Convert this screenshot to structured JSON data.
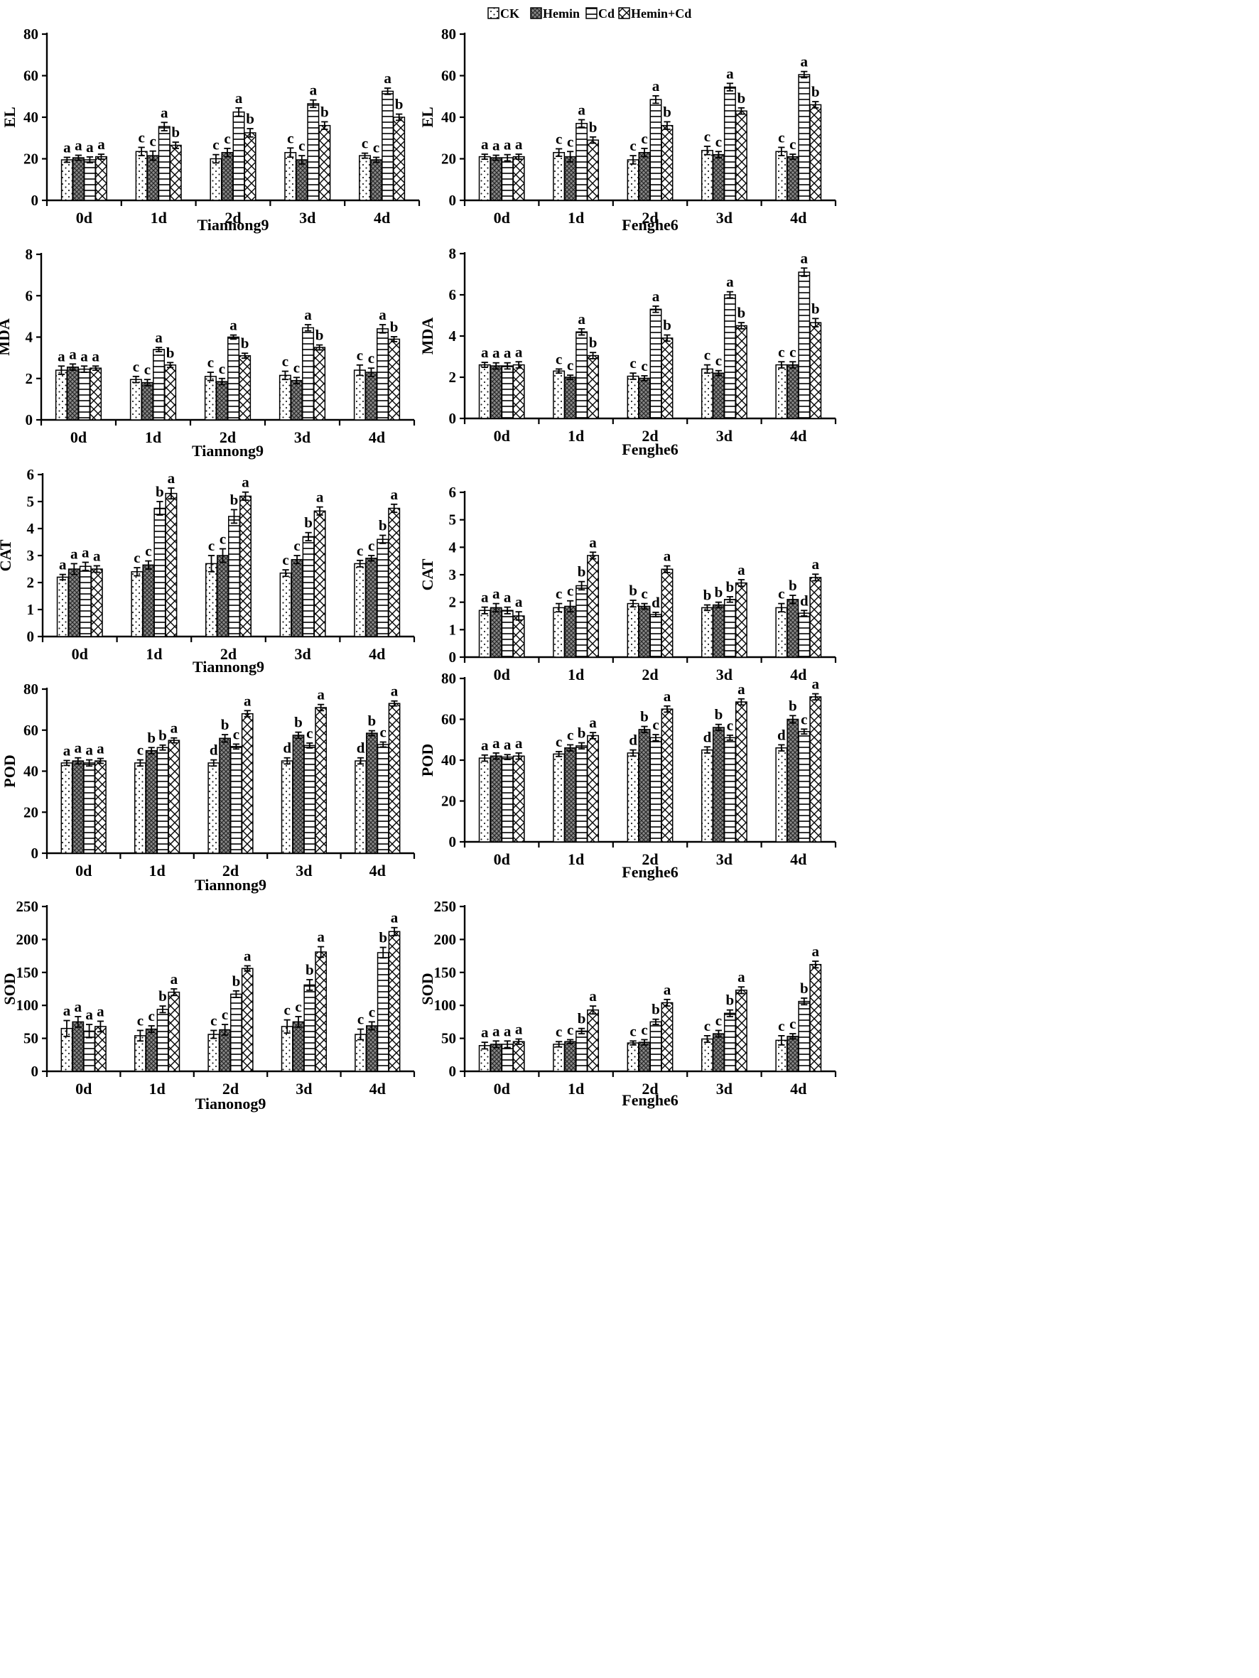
{
  "legend": [
    "CK",
    "Hemin",
    "Cd",
    "Hemin+Cd"
  ],
  "chart_data": [
    {
      "id": "el-tiannong9",
      "type": "bar",
      "ylabel": "EL",
      "xlabel": "Tiannong9",
      "categories": [
        "0d",
        "1d",
        "2d",
        "3d",
        "4d"
      ],
      "ylim": [
        0,
        80
      ],
      "yticks": [
        0,
        20,
        40,
        60,
        80
      ],
      "series": [
        {
          "name": "CK",
          "values": [
            19.5,
            23.5,
            20,
            23,
            21.5
          ],
          "errors": [
            1.2,
            2,
            2,
            2.2,
            1.2
          ],
          "letters": [
            "a",
            "c",
            "c",
            "c",
            "c"
          ]
        },
        {
          "name": "Hemin",
          "values": [
            20.5,
            21.5,
            23,
            19.5,
            19.5
          ],
          "errors": [
            1.2,
            2.2,
            2,
            2,
            1.2
          ],
          "letters": [
            "a",
            "c",
            "c",
            "c",
            "c"
          ]
        },
        {
          "name": "Cd",
          "values": [
            19.5,
            35.5,
            42.5,
            46.5,
            52.5
          ],
          "errors": [
            1.4,
            2,
            2,
            1.8,
            1.5
          ],
          "letters": [
            "a",
            "a",
            "a",
            "a",
            "a"
          ]
        },
        {
          "name": "Hemin+Cd",
          "values": [
            21,
            26.5,
            32.5,
            36,
            40
          ],
          "errors": [
            1.2,
            1.5,
            2,
            1.8,
            1.5
          ],
          "letters": [
            "a",
            "b",
            "b",
            "b",
            "b"
          ]
        }
      ]
    },
    {
      "id": "el-fenghe6",
      "type": "bar",
      "ylabel": "EL",
      "xlabel": "Fenghe6",
      "categories": [
        "0d",
        "1d",
        "2d",
        "3d",
        "4d"
      ],
      "ylim": [
        0,
        80
      ],
      "yticks": [
        0,
        20,
        40,
        60,
        80
      ],
      "series": [
        {
          "name": "CK",
          "values": [
            21,
            23,
            19.5,
            24,
            23.5
          ],
          "errors": [
            1.2,
            1.8,
            2,
            2,
            2
          ],
          "letters": [
            "a",
            "c",
            "c",
            "c",
            "c"
          ]
        },
        {
          "name": "Hemin",
          "values": [
            20.5,
            21,
            23,
            22,
            21
          ],
          "errors": [
            1.2,
            2.5,
            2,
            1.5,
            1.2
          ],
          "letters": [
            "a",
            "c",
            "c",
            "c",
            "c"
          ]
        },
        {
          "name": "Cd",
          "values": [
            20.5,
            37,
            48.5,
            54.5,
            60.5
          ],
          "errors": [
            1.5,
            1.8,
            1.8,
            1.8,
            1.5
          ],
          "letters": [
            "a",
            "a",
            "a",
            "a",
            "a"
          ]
        },
        {
          "name": "Hemin+Cd",
          "values": [
            21,
            29,
            36,
            43,
            46
          ],
          "errors": [
            1.2,
            1.5,
            1.8,
            1.5,
            1.5
          ],
          "letters": [
            "a",
            "b",
            "b",
            "b",
            "b"
          ]
        }
      ]
    },
    {
      "id": "mda-tiannong9",
      "type": "bar",
      "ylabel": "MDA",
      "xlabel": "Tiannong9",
      "categories": [
        "0d",
        "1d",
        "2d",
        "3d",
        "4d"
      ],
      "ylim": [
        0,
        8
      ],
      "yticks": [
        0,
        2,
        4,
        6,
        8
      ],
      "series": [
        {
          "name": "CK",
          "values": [
            2.4,
            1.95,
            2.1,
            2.15,
            2.4
          ],
          "errors": [
            0.2,
            0.15,
            0.2,
            0.2,
            0.25
          ],
          "letters": [
            "a",
            "c",
            "c",
            "c",
            "c"
          ]
        },
        {
          "name": "Hemin",
          "values": [
            2.55,
            1.8,
            1.85,
            1.9,
            2.3
          ],
          "errors": [
            0.15,
            0.15,
            0.15,
            0.15,
            0.2
          ],
          "letters": [
            "a",
            "c",
            "c",
            "c",
            "c"
          ]
        },
        {
          "name": "Cd",
          "values": [
            2.45,
            3.4,
            4.0,
            4.45,
            4.4
          ],
          "errors": [
            0.15,
            0.1,
            0.1,
            0.15,
            0.2
          ],
          "letters": [
            "a",
            "a",
            "a",
            "a",
            "a"
          ]
        },
        {
          "name": "Hemin+Cd",
          "values": [
            2.5,
            2.65,
            3.1,
            3.5,
            3.9
          ],
          "errors": [
            0.1,
            0.12,
            0.12,
            0.12,
            0.12
          ],
          "letters": [
            "a",
            "b",
            "b",
            "b",
            "b"
          ]
        }
      ]
    },
    {
      "id": "mda-fenghe6",
      "type": "bar",
      "ylabel": "MDA",
      "xlabel": "Fenghe6",
      "categories": [
        "0d",
        "1d",
        "2d",
        "3d",
        "4d"
      ],
      "ylim": [
        0,
        8
      ],
      "yticks": [
        0,
        2,
        4,
        6,
        8
      ],
      "series": [
        {
          "name": "CK",
          "values": [
            2.6,
            2.3,
            2.05,
            2.4,
            2.6
          ],
          "errors": [
            0.12,
            0.1,
            0.15,
            0.2,
            0.15
          ],
          "letters": [
            "a",
            "c",
            "c",
            "c",
            "c"
          ]
        },
        {
          "name": "Hemin",
          "values": [
            2.55,
            2.0,
            1.95,
            2.2,
            2.6
          ],
          "errors": [
            0.15,
            0.1,
            0.12,
            0.12,
            0.15
          ],
          "letters": [
            "a",
            "c",
            "c",
            "c",
            "c"
          ]
        },
        {
          "name": "Cd",
          "values": [
            2.55,
            4.2,
            5.3,
            6.0,
            7.1
          ],
          "errors": [
            0.15,
            0.15,
            0.15,
            0.15,
            0.2
          ],
          "letters": [
            "a",
            "a",
            "a",
            "a",
            "a"
          ]
        },
        {
          "name": "Hemin+Cd",
          "values": [
            2.6,
            3.05,
            3.9,
            4.5,
            4.65
          ],
          "errors": [
            0.15,
            0.15,
            0.15,
            0.15,
            0.2
          ],
          "letters": [
            "a",
            "b",
            "b",
            "b",
            "b"
          ]
        }
      ]
    },
    {
      "id": "cat-tiannong9",
      "type": "bar",
      "ylabel": "CAT",
      "xlabel": "Tiannong9",
      "categories": [
        "0d",
        "1d",
        "2d",
        "3d",
        "4d"
      ],
      "ylim": [
        0,
        6
      ],
      "yticks": [
        0,
        1,
        2,
        3,
        4,
        5,
        6
      ],
      "series": [
        {
          "name": "CK",
          "values": [
            2.2,
            2.4,
            2.7,
            2.35,
            2.7
          ],
          "errors": [
            0.1,
            0.15,
            0.3,
            0.12,
            0.12
          ],
          "letters": [
            "a",
            "c",
            "c",
            "c",
            "c"
          ]
        },
        {
          "name": "Hemin",
          "values": [
            2.5,
            2.65,
            3.0,
            2.85,
            2.9
          ],
          "errors": [
            0.2,
            0.15,
            0.25,
            0.15,
            0.1
          ],
          "letters": [
            "a",
            "c",
            "c",
            "c",
            "c"
          ]
        },
        {
          "name": "Cd",
          "values": [
            2.6,
            4.75,
            4.45,
            3.7,
            3.6
          ],
          "errors": [
            0.15,
            0.25,
            0.25,
            0.15,
            0.15
          ],
          "letters": [
            "a",
            "b",
            "b",
            "b",
            "b"
          ]
        },
        {
          "name": "Hemin+Cd",
          "values": [
            2.5,
            5.3,
            5.2,
            4.65,
            4.75
          ],
          "errors": [
            0.12,
            0.2,
            0.15,
            0.15,
            0.15
          ],
          "letters": [
            "a",
            "a",
            "a",
            "a",
            "a"
          ]
        }
      ]
    },
    {
      "id": "cat-fenghe6",
      "type": "bar",
      "ylabel": "CAT",
      "xlabel": "",
      "categories": [
        "0d",
        "1d",
        "2d",
        "3d",
        "4d"
      ],
      "ylim": [
        0,
        6
      ],
      "yticks": [
        0,
        1,
        2,
        3,
        4,
        5,
        6
      ],
      "series": [
        {
          "name": "CK",
          "values": [
            1.7,
            1.8,
            1.95,
            1.8,
            1.8
          ],
          "errors": [
            0.12,
            0.15,
            0.12,
            0.1,
            0.15
          ],
          "letters": [
            "a",
            "c",
            "b",
            "b",
            "c"
          ]
        },
        {
          "name": "Hemin",
          "values": [
            1.8,
            1.85,
            1.85,
            1.9,
            2.1
          ],
          "errors": [
            0.15,
            0.2,
            0.1,
            0.1,
            0.15
          ],
          "letters": [
            "a",
            "c",
            "c",
            "b",
            "b"
          ]
        },
        {
          "name": "Cd",
          "values": [
            1.7,
            2.6,
            1.55,
            2.1,
            1.6
          ],
          "errors": [
            0.12,
            0.15,
            0.08,
            0.1,
            0.1
          ],
          "letters": [
            "a",
            "b",
            "d",
            "b",
            "d"
          ]
        },
        {
          "name": "Hemin+Cd",
          "values": [
            1.5,
            3.7,
            3.2,
            2.7,
            2.9
          ],
          "errors": [
            0.15,
            0.12,
            0.12,
            0.12,
            0.12
          ],
          "letters": [
            "a",
            "a",
            "a",
            "a",
            "a"
          ]
        }
      ]
    },
    {
      "id": "pod-tiannong9",
      "type": "bar",
      "ylabel": "POD",
      "xlabel": "Tiannong9",
      "categories": [
        "0d",
        "1d",
        "2d",
        "3d",
        "4d"
      ],
      "ylim": [
        0,
        80
      ],
      "yticks": [
        0,
        20,
        40,
        60,
        80
      ],
      "series": [
        {
          "name": "CK",
          "values": [
            44,
            44,
            44,
            45,
            45
          ],
          "errors": [
            1.2,
            1.5,
            1.5,
            1.5,
            1.5
          ],
          "letters": [
            "a",
            "c",
            "d",
            "d",
            "d"
          ]
        },
        {
          "name": "Hemin",
          "values": [
            45,
            50,
            56,
            57.5,
            58.5
          ],
          "errors": [
            1.5,
            1.5,
            1.8,
            1.5,
            1.2
          ],
          "letters": [
            "a",
            "b",
            "b",
            "b",
            "b"
          ]
        },
        {
          "name": "Cd",
          "values": [
            44,
            51.5,
            52,
            52.5,
            53
          ],
          "errors": [
            1.5,
            1.2,
            1.2,
            1.2,
            1.2
          ],
          "letters": [
            "a",
            "b",
            "c",
            "c",
            "c"
          ]
        },
        {
          "name": "Hemin+Cd",
          "values": [
            45,
            55,
            68,
            71,
            73
          ],
          "errors": [
            1.2,
            1.2,
            1.5,
            1.5,
            1.2
          ],
          "letters": [
            "a",
            "a",
            "a",
            "a",
            "a"
          ]
        }
      ]
    },
    {
      "id": "pod-fenghe6",
      "type": "bar",
      "ylabel": "POD",
      "xlabel": "Fenghe6",
      "categories": [
        "0d",
        "1d",
        "2d",
        "3d",
        "4d"
      ],
      "ylim": [
        0,
        80
      ],
      "yticks": [
        0,
        20,
        40,
        60,
        80
      ],
      "series": [
        {
          "name": "CK",
          "values": [
            41,
            43,
            43.5,
            45,
            46
          ],
          "errors": [
            1.5,
            1.2,
            1.5,
            1.5,
            1.5
          ],
          "letters": [
            "a",
            "c",
            "d",
            "d",
            "d"
          ]
        },
        {
          "name": "Hemin",
          "values": [
            42,
            46,
            55,
            56,
            60
          ],
          "errors": [
            1.5,
            1.5,
            1.5,
            1.5,
            1.8
          ],
          "letters": [
            "a",
            "c",
            "b",
            "b",
            "b"
          ]
        },
        {
          "name": "Cd",
          "values": [
            41.5,
            47,
            51,
            51,
            54
          ],
          "errors": [
            1.2,
            1.5,
            1.5,
            1.2,
            1.2
          ],
          "letters": [
            "a",
            "b",
            "c",
            "c",
            "c"
          ]
        },
        {
          "name": "Hemin+Cd",
          "values": [
            42,
            52,
            65,
            68.5,
            71
          ],
          "errors": [
            1.5,
            1.5,
            1.5,
            1.5,
            1.5
          ],
          "letters": [
            "a",
            "a",
            "a",
            "a",
            "a"
          ]
        }
      ]
    },
    {
      "id": "sod-tiannong9",
      "type": "bar",
      "ylabel": "SOD",
      "xlabel": "Tianonog9",
      "categories": [
        "0d",
        "1d",
        "2d",
        "3d",
        "4d"
      ],
      "ylim": [
        0,
        250
      ],
      "yticks": [
        0,
        50,
        100,
        150,
        200,
        250
      ],
      "series": [
        {
          "name": "CK",
          "values": [
            65,
            54,
            56,
            68,
            56
          ],
          "errors": [
            12,
            8,
            6,
            10,
            8
          ],
          "letters": [
            "a",
            "c",
            "c",
            "c",
            "c"
          ]
        },
        {
          "name": "Hemin",
          "values": [
            75,
            64,
            63,
            75,
            69
          ],
          "errors": [
            8,
            5,
            8,
            8,
            6
          ],
          "letters": [
            "a",
            "c",
            "c",
            "c",
            "c"
          ]
        },
        {
          "name": "Cd",
          "values": [
            61,
            94,
            117,
            131,
            180
          ],
          "errors": [
            10,
            5,
            5,
            8,
            8
          ],
          "letters": [
            "a",
            "b",
            "b",
            "b",
            "b"
          ]
        },
        {
          "name": "Hemin+Cd",
          "values": [
            68,
            120,
            156,
            181,
            212
          ],
          "errors": [
            8,
            5,
            4,
            8,
            6
          ],
          "letters": [
            "a",
            "a",
            "a",
            "a",
            "a"
          ]
        }
      ]
    },
    {
      "id": "sod-fenghe6",
      "type": "bar",
      "ylabel": "SOD",
      "xlabel": "Fenghe6",
      "categories": [
        "0d",
        "1d",
        "2d",
        "3d",
        "4d"
      ],
      "ylim": [
        0,
        250
      ],
      "yticks": [
        0,
        50,
        100,
        150,
        200,
        250
      ],
      "series": [
        {
          "name": "CK",
          "values": [
            39,
            41,
            43,
            49,
            47
          ],
          "errors": [
            5,
            4,
            3,
            5,
            7
          ],
          "letters": [
            "a",
            "c",
            "c",
            "c",
            "c"
          ]
        },
        {
          "name": "Hemin",
          "values": [
            41,
            45,
            44,
            57,
            53
          ],
          "errors": [
            5,
            3,
            4,
            5,
            4
          ],
          "letters": [
            "a",
            "c",
            "c",
            "c",
            "c"
          ]
        },
        {
          "name": "Cd",
          "values": [
            41,
            61,
            75,
            88,
            106
          ],
          "errors": [
            5,
            4,
            4,
            5,
            5
          ],
          "letters": [
            "a",
            "b",
            "b",
            "b",
            "b"
          ]
        },
        {
          "name": "Hemin+Cd",
          "values": [
            45,
            93,
            104,
            123,
            162
          ],
          "errors": [
            4,
            6,
            5,
            5,
            5
          ],
          "letters": [
            "a",
            "a",
            "a",
            "a",
            "a"
          ]
        }
      ]
    }
  ]
}
